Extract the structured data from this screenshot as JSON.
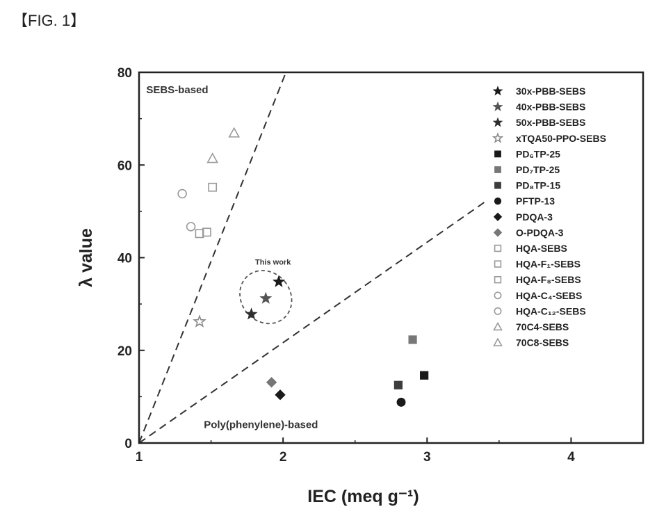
{
  "figure_label": "【FIG. 1】",
  "chart_data": {
    "type": "scatter",
    "xlabel": "IEC (meq g⁻¹)",
    "ylabel": "λ value",
    "xlim": [
      1,
      4.5
    ],
    "ylim": [
      0,
      80
    ],
    "xticks": [
      1,
      2,
      3,
      4
    ],
    "yticks": [
      0,
      20,
      40,
      60,
      80
    ],
    "grid": false,
    "legend_position": "right",
    "region_labels": [
      {
        "text": "SEBS-based",
        "x": 1.05,
        "y": 75.5
      },
      {
        "text": "Poly(phenylene)-based",
        "x": 1.45,
        "y": 3.2
      }
    ],
    "annotation": {
      "text": "This work",
      "x": 1.93,
      "y": 38.5
    },
    "guide_lines": [
      {
        "from": [
          1,
          0
        ],
        "to": [
          2.02,
          80
        ]
      },
      {
        "from": [
          1,
          0
        ],
        "to": [
          3.4,
          52
        ]
      }
    ],
    "highlight_ellipse": {
      "cx": 1.88,
      "cy": 31.5,
      "rx": 0.17,
      "ry": 6
    },
    "series": [
      {
        "name": "30x-PBB-SEBS",
        "marker": "star-filled",
        "color": "#1a1a1a",
        "points": [
          [
            1.97,
            34.8
          ]
        ]
      },
      {
        "name": "40x-PBB-SEBS",
        "marker": "star-filled",
        "color": "#555555",
        "points": [
          [
            1.88,
            31.2
          ]
        ]
      },
      {
        "name": "50x-PBB-SEBS",
        "marker": "star-filled",
        "color": "#2e2e2e",
        "points": [
          [
            1.78,
            27.8
          ]
        ]
      },
      {
        "name": "xTQA50-PPO-SEBS",
        "marker": "star-open",
        "color": "#8a8a8a",
        "points": [
          [
            1.42,
            26.2
          ]
        ]
      },
      {
        "name": "PD₆TP-25",
        "marker": "square-filled",
        "color": "#1a1a1a",
        "points": [
          [
            2.98,
            14.6
          ]
        ]
      },
      {
        "name": "PD₇TP-25",
        "marker": "square-filled",
        "color": "#777777",
        "points": [
          [
            2.9,
            22.3
          ]
        ]
      },
      {
        "name": "PD₈TP-15",
        "marker": "square-filled",
        "color": "#3c3c3c",
        "points": [
          [
            2.8,
            12.5
          ]
        ]
      },
      {
        "name": "PFTP-13",
        "marker": "circle-filled",
        "color": "#1a1a1a",
        "points": [
          [
            2.82,
            8.8
          ]
        ]
      },
      {
        "name": "PDQA-3",
        "marker": "diamond-filled",
        "color": "#1a1a1a",
        "points": [
          [
            1.98,
            10.4
          ]
        ]
      },
      {
        "name": "O-PDQA-3",
        "marker": "diamond-filled",
        "color": "#777777",
        "points": [
          [
            1.92,
            13.1
          ]
        ]
      },
      {
        "name": "HQA-SEBS",
        "marker": "square-open",
        "color": "#999999",
        "points": [
          [
            1.47,
            45.5
          ]
        ]
      },
      {
        "name": "HQA-F₁-SEBS",
        "marker": "square-open",
        "color": "#999999",
        "points": [
          [
            1.51,
            55.2
          ]
        ]
      },
      {
        "name": "HQA-F₈-SEBS",
        "marker": "square-open",
        "color": "#999999",
        "points": [
          [
            1.42,
            45.2
          ]
        ]
      },
      {
        "name": "HQA-C₄-SEBS",
        "marker": "circle-open",
        "color": "#999999",
        "points": [
          [
            1.3,
            53.8
          ]
        ]
      },
      {
        "name": "HQA-C₁₂-SEBS",
        "marker": "circle-open",
        "color": "#999999",
        "points": [
          [
            1.36,
            46.7
          ]
        ]
      },
      {
        "name": "70C4-SEBS",
        "marker": "triangle-open",
        "color": "#999999",
        "points": [
          [
            1.66,
            66.9
          ]
        ]
      },
      {
        "name": "70C8-SEBS",
        "marker": "triangle-open",
        "color": "#999999",
        "points": [
          [
            1.51,
            61.4
          ]
        ]
      }
    ]
  }
}
